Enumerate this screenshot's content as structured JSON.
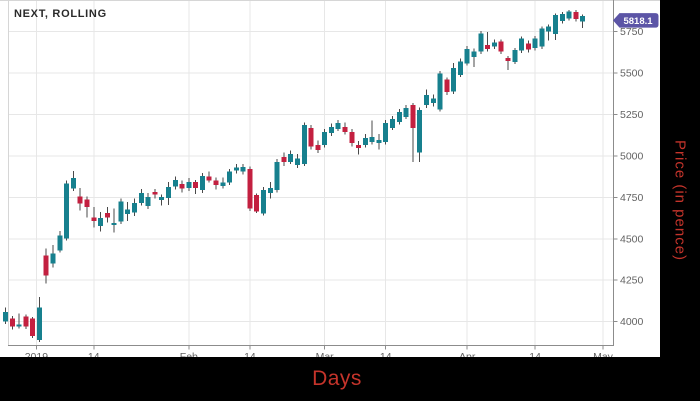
{
  "window": {
    "title": "NEXT, ROLLING"
  },
  "price_axis": {
    "title": "Price (in pence)",
    "badge_value": "5818.1",
    "tick_labels": [
      "5750",
      "5500",
      "5250",
      "5000",
      "4750",
      "4500",
      "4250",
      "4000"
    ]
  },
  "x_axis": {
    "title": "Days",
    "tick_labels": [
      "2019",
      "14",
      "Feb",
      "14",
      "Mar",
      "14",
      "Apr",
      "14",
      "May"
    ]
  },
  "chart_data": {
    "type": "candlestick",
    "title": "NEXT, ROLLING",
    "xlabel": "Days",
    "ylabel": "Price (in pence)",
    "ylim": [
      3858,
      5941
    ],
    "grid": true,
    "last_price": 5818.1,
    "y_ticks": [
      5750,
      5500,
      5250,
      5000,
      4750,
      4500,
      4250,
      4000
    ],
    "x_ticks": [
      {
        "label": "2019",
        "i": 4.55
      },
      {
        "label": "14",
        "i": 13
      },
      {
        "label": "Feb",
        "i": 27
      },
      {
        "label": "14",
        "i": 36
      },
      {
        "label": "Mar",
        "i": 47
      },
      {
        "label": "14",
        "i": 56
      },
      {
        "label": "Apr",
        "i": 68
      },
      {
        "label": "14",
        "i": 78
      },
      {
        "label": "May",
        "i": 88
      }
    ],
    "colors": {
      "up": "#17808e",
      "down": "#c32040",
      "wick": "#4a4a4a",
      "grid": "#e7e7e7",
      "border_light": "#d6d6d6",
      "axis_line": "#8c8c8c",
      "tick_text": "#636363",
      "badge": "#5c55a6",
      "badge_text": "#ffffff",
      "accent_red": "#c5342b",
      "panel_bg": "#ffffff",
      "frame_bg": "#000000"
    },
    "candles_format": [
      "open",
      "high",
      "low",
      "close"
    ],
    "candles": [
      [
        4000,
        4085,
        3985,
        4058
      ],
      [
        4018,
        4035,
        3952,
        3970
      ],
      [
        3972,
        4048,
        3958,
        3984
      ],
      [
        4030,
        4042,
        3956,
        3970
      ],
      [
        4018,
        4028,
        3900,
        3915
      ],
      [
        3890,
        4148,
        3878,
        4087
      ],
      [
        4400,
        4442,
        4230,
        4278
      ],
      [
        4350,
        4462,
        4328,
        4410
      ],
      [
        4430,
        4548,
        4418,
        4520
      ],
      [
        4502,
        4852,
        4490,
        4835
      ],
      [
        4805,
        4908,
        4788,
        4866
      ],
      [
        4755,
        4808,
        4672,
        4713
      ],
      [
        4738,
        4756,
        4628,
        4692
      ],
      [
        4630,
        4692,
        4568,
        4606
      ],
      [
        4578,
        4662,
        4545,
        4625
      ],
      [
        4655,
        4692,
        4598,
        4630
      ],
      [
        4582,
        4682,
        4538,
        4594
      ],
      [
        4603,
        4742,
        4588,
        4724
      ],
      [
        4650,
        4722,
        4608,
        4678
      ],
      [
        4660,
        4742,
        4638,
        4715
      ],
      [
        4716,
        4800,
        4700,
        4776
      ],
      [
        4698,
        4776,
        4680,
        4752
      ],
      [
        4783,
        4802,
        4744,
        4766
      ],
      [
        4735,
        4766,
        4700,
        4753
      ],
      [
        4746,
        4844,
        4703,
        4812
      ],
      [
        4815,
        4876,
        4798,
        4855
      ],
      [
        4830,
        4852,
        4778,
        4804
      ],
      [
        4808,
        4866,
        4790,
        4843
      ],
      [
        4843,
        4856,
        4770,
        4806
      ],
      [
        4794,
        4896,
        4775,
        4879
      ],
      [
        4876,
        4906,
        4840,
        4851
      ],
      [
        4851,
        4870,
        4798,
        4825
      ],
      [
        4819,
        4870,
        4805,
        4839
      ],
      [
        4839,
        4922,
        4824,
        4905
      ],
      [
        4911,
        4952,
        4894,
        4930
      ],
      [
        4906,
        4950,
        4888,
        4932
      ],
      [
        4921,
        4936,
        4668,
        4683
      ],
      [
        4764,
        4772,
        4656,
        4664
      ],
      [
        4653,
        4812,
        4640,
        4795
      ],
      [
        4776,
        4842,
        4744,
        4806
      ],
      [
        4794,
        4982,
        4780,
        4963
      ],
      [
        4993,
        5022,
        4938,
        4962
      ],
      [
        4963,
        5032,
        4950,
        5011
      ],
      [
        4945,
        5012,
        4928,
        4985
      ],
      [
        4950,
        5202,
        4938,
        5188
      ],
      [
        5168,
        5188,
        5038,
        5056
      ],
      [
        5066,
        5092,
        5018,
        5036
      ],
      [
        5066,
        5162,
        5050,
        5145
      ],
      [
        5138,
        5196,
        5120,
        5176
      ],
      [
        5163,
        5216,
        5150,
        5199
      ],
      [
        5176,
        5202,
        5128,
        5146
      ],
      [
        5146,
        5162,
        5058,
        5078
      ],
      [
        5066,
        5090,
        5008,
        5048
      ],
      [
        5066,
        5132,
        5050,
        5108
      ],
      [
        5084,
        5215,
        5068,
        5114
      ],
      [
        5078,
        5132,
        5040,
        5096
      ],
      [
        5084,
        5216,
        5070,
        5198
      ],
      [
        5168,
        5242,
        5156,
        5224
      ],
      [
        5206,
        5282,
        5190,
        5266
      ],
      [
        5236,
        5306,
        5224,
        5290
      ],
      [
        5307,
        5318,
        4962,
        5168
      ],
      [
        5020,
        5292,
        4965,
        5278
      ],
      [
        5307,
        5402,
        5290,
        5368
      ],
      [
        5320,
        5372,
        5298,
        5348
      ],
      [
        5280,
        5512,
        5268,
        5498
      ],
      [
        5460,
        5472,
        5368,
        5386
      ],
      [
        5390,
        5562,
        5375,
        5532
      ],
      [
        5488,
        5588,
        5476,
        5570
      ],
      [
        5558,
        5662,
        5545,
        5645
      ],
      [
        5598,
        5648,
        5538,
        5630
      ],
      [
        5630,
        5754,
        5614,
        5740
      ],
      [
        5670,
        5748,
        5630,
        5645
      ],
      [
        5660,
        5702,
        5645,
        5684
      ],
      [
        5690,
        5702,
        5614,
        5630
      ],
      [
        5590,
        5602,
        5518,
        5574
      ],
      [
        5568,
        5652,
        5555,
        5640
      ],
      [
        5635,
        5722,
        5620,
        5710
      ],
      [
        5680,
        5696,
        5624,
        5642
      ],
      [
        5650,
        5724,
        5636,
        5710
      ],
      [
        5660,
        5782,
        5646,
        5768
      ],
      [
        5752,
        5792,
        5698,
        5782
      ],
      [
        5736,
        5860,
        5700,
        5850
      ],
      [
        5815,
        5870,
        5798,
        5858
      ],
      [
        5830,
        5882,
        5816,
        5872
      ],
      [
        5868,
        5880,
        5812,
        5826
      ],
      [
        5812,
        5854,
        5772,
        5845
      ]
    ]
  }
}
